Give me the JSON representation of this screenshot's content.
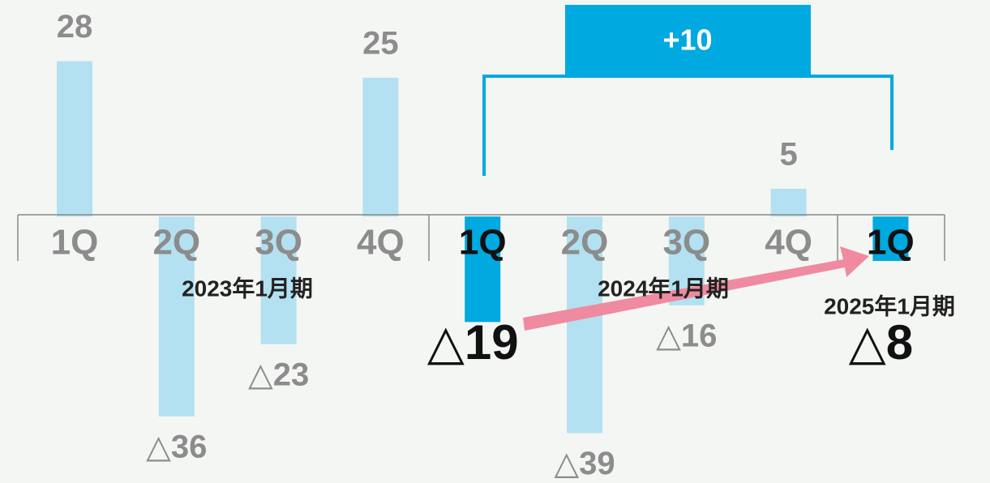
{
  "chart_data": {
    "type": "bar",
    "categories": [
      "1Q",
      "2Q",
      "3Q",
      "4Q",
      "1Q",
      "2Q",
      "3Q",
      "4Q",
      "1Q"
    ],
    "values": [
      28,
      -36,
      -23,
      25,
      -19,
      -39,
      -16,
      5,
      -8
    ],
    "value_labels": [
      "28",
      "△36",
      "△23",
      "25",
      "△19",
      "△39",
      "△16",
      "5",
      "△8"
    ],
    "colors": [
      "#b3e1f1",
      "#b3e1f1",
      "#b3e1f1",
      "#b3e1f1",
      "#00a9e0",
      "#b3e1f1",
      "#b3e1f1",
      "#b3e1f1",
      "#00a9e0"
    ],
    "periods": [
      "2023年1月期",
      "2024年1月期",
      "2025年1月期"
    ],
    "annotation": "+10",
    "ylim": [
      -48,
      39
    ]
  }
}
